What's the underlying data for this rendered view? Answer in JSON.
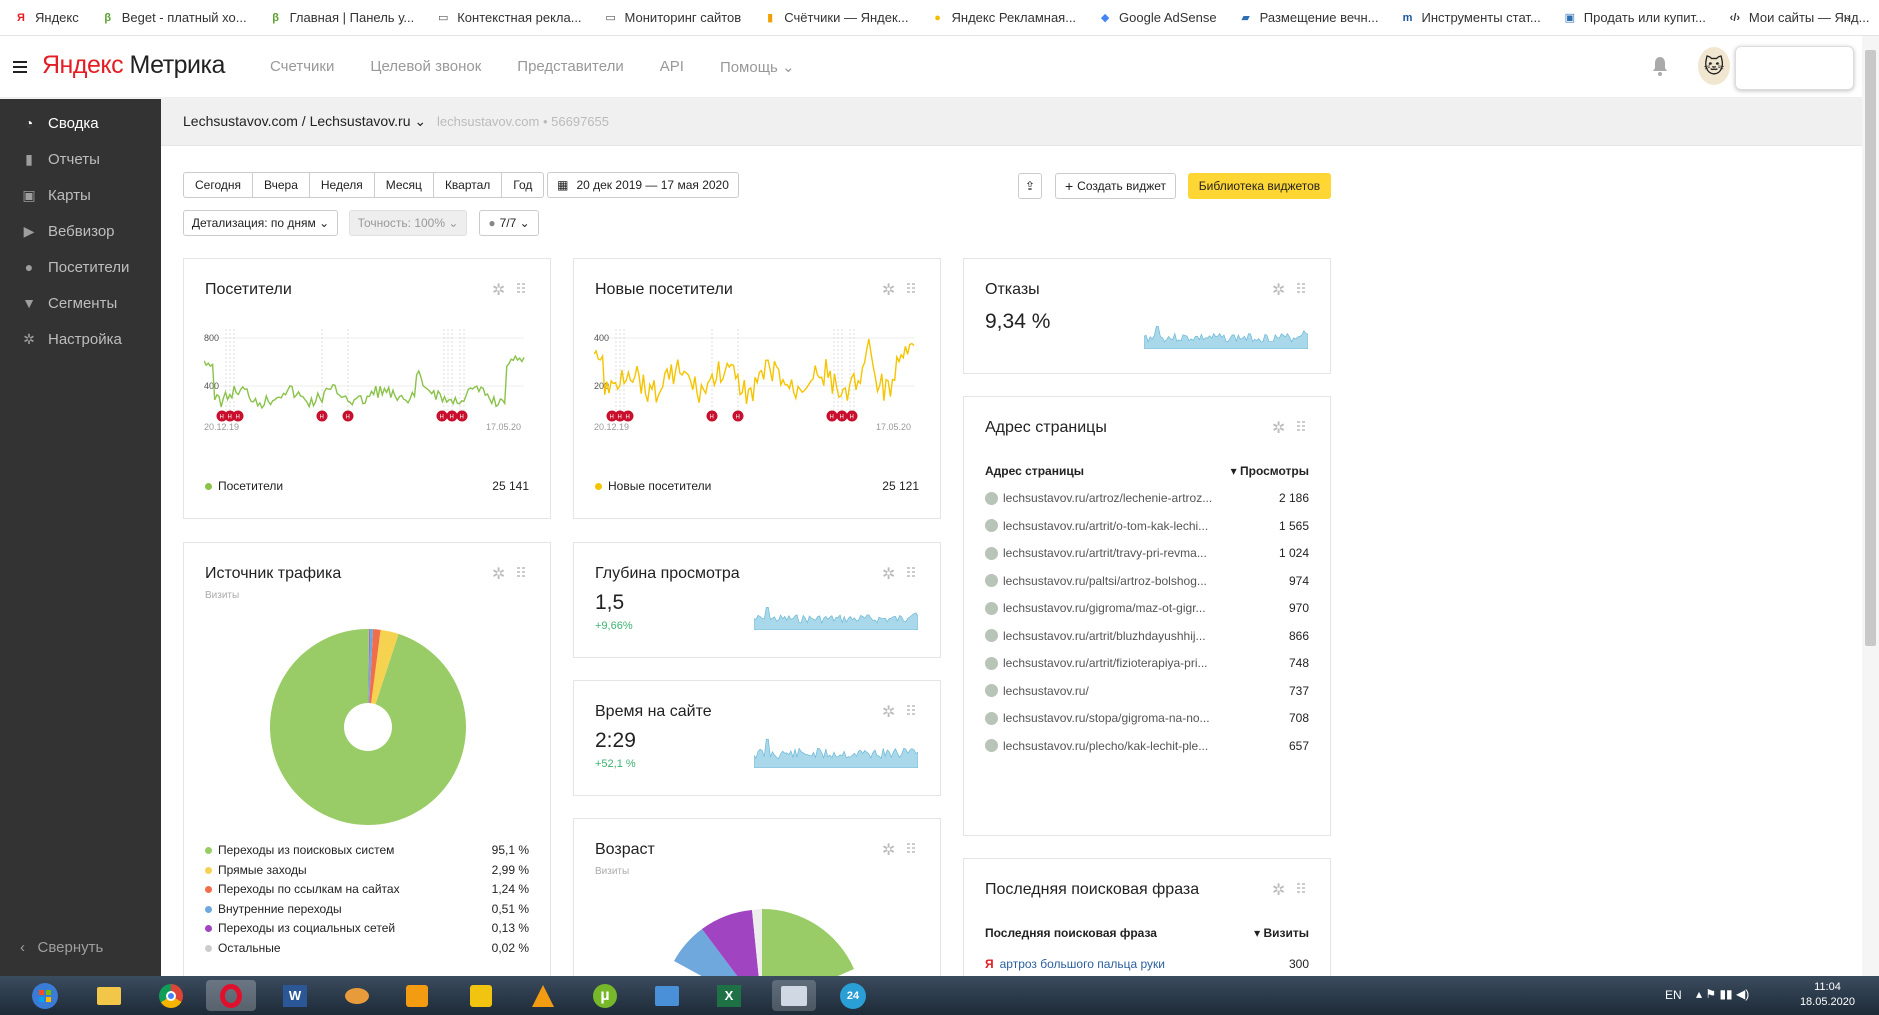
{
  "bookmarks": [
    {
      "label": "Яндекс",
      "icon": "yandex-icon",
      "color": "#e31e24"
    },
    {
      "label": "Beget - платный хо...",
      "icon": "beget-icon",
      "color": "#5aa02c"
    },
    {
      "label": "Главная | Панель у...",
      "icon": "beget-icon",
      "color": "#5aa02c"
    },
    {
      "label": "Контекстная рекла...",
      "icon": "folder-icon",
      "color": "#555"
    },
    {
      "label": "Мониторинг сайтов",
      "icon": "folder-icon",
      "color": "#555"
    },
    {
      "label": "Счётчики — Яндек...",
      "icon": "metrika-icon",
      "color": "#f0a000"
    },
    {
      "label": "Яндекс Рекламная...",
      "icon": "direct-icon",
      "color": "#f0c000"
    },
    {
      "label": "Google AdSense",
      "icon": "adsense-icon",
      "color": "#4285f4"
    },
    {
      "label": "Размещение вечн...",
      "icon": "chart-icon",
      "color": "#2d6fb5"
    },
    {
      "label": "Инструменты стат...",
      "icon": "tool-icon",
      "color": "#1a56a0"
    },
    {
      "label": "Продать или купит...",
      "icon": "market-icon",
      "color": "#2d6fb5"
    },
    {
      "label": "Мои сайты — Янд...",
      "icon": "webmaster-icon",
      "color": "#333"
    }
  ],
  "header": {
    "logo_ya": "Яндекс",
    "logo_rest": " Метрика",
    "nav": [
      "Счетчики",
      "Целевой звонок",
      "Представители",
      "API",
      "Помощь"
    ]
  },
  "sidebar": {
    "items": [
      {
        "label": "Сводка",
        "icon": "dashboard-icon"
      },
      {
        "label": "Отчеты",
        "icon": "reports-icon"
      },
      {
        "label": "Карты",
        "icon": "maps-icon"
      },
      {
        "label": "Вебвизор",
        "icon": "play-icon"
      },
      {
        "label": "Посетители",
        "icon": "user-icon"
      },
      {
        "label": "Сегменты",
        "icon": "filter-icon"
      },
      {
        "label": "Настройка",
        "icon": "gear-icon"
      }
    ],
    "collapse": "Свернуть"
  },
  "counter": {
    "title": "Lechsustavov.com / Lechsustavov.ru",
    "id": "lechsustavov.com • 56697655"
  },
  "toolbar": {
    "periods": [
      "Сегодня",
      "Вчера",
      "Неделя",
      "Месяц",
      "Квартал",
      "Год"
    ],
    "date_range": "20 дек 2019 — 17 мая 2020",
    "create_widget": "Создать виджет",
    "library": "Библиотека виджетов",
    "detail": "Детализация: по дням",
    "accuracy": "Точность: 100%",
    "segments": "7/7"
  },
  "visitors": {
    "title": "Посетители",
    "y_ticks": [
      "800",
      "400"
    ],
    "x_start": "20.12.19",
    "x_end": "17.05.20",
    "legend": "Посетители",
    "total": "25 141",
    "color": "#8ac24a"
  },
  "new_visitors": {
    "title": "Новые посетители",
    "y_ticks": [
      "400",
      "200"
    ],
    "x_start": "20.12.19",
    "x_end": "17.05.20",
    "legend": "Новые посетители",
    "total": "25 121",
    "color": "#f5c400"
  },
  "bounces": {
    "title": "Отказы",
    "value": "9,34 %"
  },
  "depth": {
    "title": "Глубина просмотра",
    "value": "1,5",
    "delta": "+9,66%"
  },
  "time": {
    "title": "Время на сайте",
    "value": "2:29",
    "delta": "+52,1 %"
  },
  "age": {
    "title": "Возраст",
    "subtitle": "Визиты"
  },
  "traffic": {
    "title": "Источник трафика",
    "subtitle": "Визиты",
    "rows": [
      {
        "label": "Переходы из поисковых систем",
        "value": "95,1 %",
        "color": "#99cc66"
      },
      {
        "label": "Прямые заходы",
        "value": "2,99 %",
        "color": "#f5d350"
      },
      {
        "label": "Переходы по ссылкам на сайтах",
        "value": "1,24 %",
        "color": "#f26d4a"
      },
      {
        "label": "Внутренние переходы",
        "value": "0,51 %",
        "color": "#6fa8dc"
      },
      {
        "label": "Переходы из социальных сетей",
        "value": "0,13 %",
        "color": "#a044c2"
      },
      {
        "label": "Остальные",
        "value": "0,02 %",
        "color": "#cccccc"
      }
    ]
  },
  "pages": {
    "title": "Адрес страницы",
    "col1": "Адрес страницы",
    "col2": "▾ Просмотры",
    "rows": [
      {
        "url": "lechsustavov.ru/artroz/lechenie-artroz...",
        "views": "2 186"
      },
      {
        "url": "lechsustavov.ru/artrit/o-tom-kak-lechi...",
        "views": "1 565"
      },
      {
        "url": "lechsustavov.ru/artrit/travy-pri-revma...",
        "views": "1 024"
      },
      {
        "url": "lechsustavov.ru/paltsi/artroz-bolshog...",
        "views": "974"
      },
      {
        "url": "lechsustavov.ru/gigroma/maz-ot-gigr...",
        "views": "970"
      },
      {
        "url": "lechsustavov.ru/artrit/bluzhdayushhij...",
        "views": "866"
      },
      {
        "url": "lechsustavov.ru/artrit/fizioterapiya-pri...",
        "views": "748"
      },
      {
        "url": "lechsustavov.ru/",
        "views": "737"
      },
      {
        "url": "lechsustavov.ru/stopa/gigroma-na-no...",
        "views": "708"
      },
      {
        "url": "lechsustavov.ru/plecho/kak-lechit-ple...",
        "views": "657"
      }
    ]
  },
  "search_phrase": {
    "title": "Последняя поисковая фраза",
    "col1": "Последняя поисковая фраза",
    "col2": "▾ Визиты",
    "rows": [
      {
        "phrase": "артроз большого пальца руки",
        "visits": "300"
      }
    ]
  },
  "taskbar": {
    "lang": "EN",
    "time": "11:04",
    "date": "18.05.2020"
  }
}
